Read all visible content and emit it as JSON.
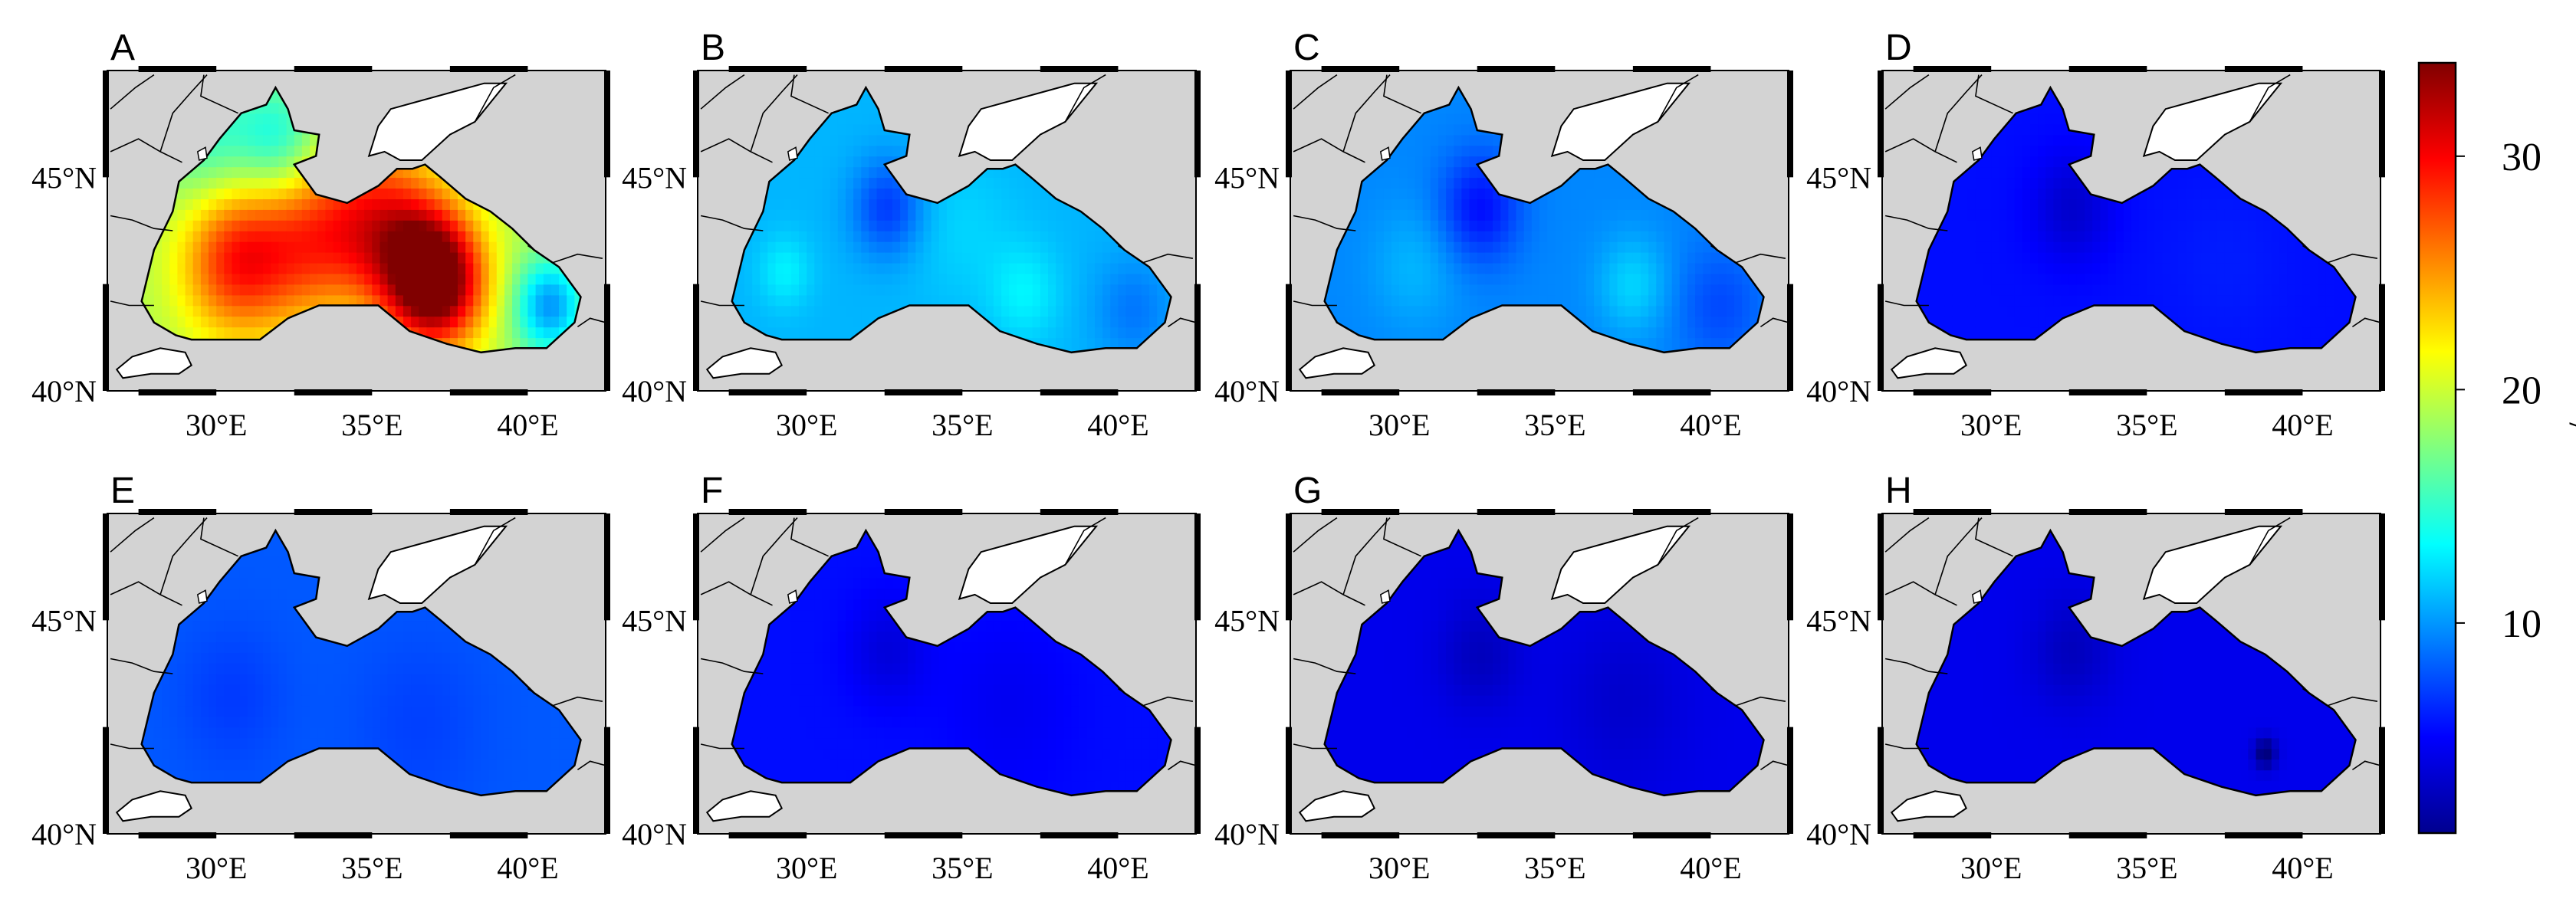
{
  "panels": [
    {
      "label": "A",
      "field": {
        "base": 19,
        "hotspots": [
          [
            37.0,
            42.6,
            18,
            1.1
          ],
          [
            33.0,
            43.3,
            10,
            1.6
          ],
          [
            30.5,
            43.0,
            8,
            1.2
          ],
          [
            35.5,
            43.9,
            8,
            1.3
          ],
          [
            32.0,
            45.8,
            -6,
            1.0
          ],
          [
            29.6,
            46.0,
            -4,
            1.1
          ],
          [
            40.7,
            42.0,
            -9,
            0.8
          ],
          [
            33.5,
            41.6,
            -3,
            1.5
          ]
        ]
      }
    },
    {
      "label": "B",
      "field": {
        "base": 11,
        "hotspots": [
          [
            32.6,
            44.3,
            -4,
            0.8
          ],
          [
            29.3,
            42.8,
            2,
            0.6
          ],
          [
            37.0,
            42.3,
            2,
            0.8
          ],
          [
            35.0,
            43.8,
            1,
            1.2
          ],
          [
            40.5,
            41.9,
            -2,
            0.9
          ]
        ]
      }
    },
    {
      "label": "C",
      "field": {
        "base": 9.5,
        "hotspots": [
          [
            32.6,
            44.3,
            -4,
            0.9
          ],
          [
            37.5,
            42.5,
            2.5,
            0.8
          ],
          [
            30.5,
            42.9,
            1.5,
            1.0
          ],
          [
            40.3,
            42.0,
            -2,
            1.0
          ]
        ]
      }
    },
    {
      "label": "D",
      "field": {
        "base": 5.5,
        "hotspots": [
          [
            32.6,
            44.3,
            -2,
            0.9
          ],
          [
            37.5,
            43.0,
            0.5,
            1.5
          ]
        ]
      }
    },
    {
      "label": "E",
      "field": {
        "base": 8,
        "hotspots": [
          [
            30.5,
            43.2,
            -1,
            1.2
          ],
          [
            36.5,
            42.6,
            -0.8,
            1.5
          ]
        ]
      }
    },
    {
      "label": "F",
      "field": {
        "base": 5.5,
        "hotspots": [
          [
            32.6,
            44.3,
            -1.5,
            0.9
          ],
          [
            36.5,
            43.0,
            -0.8,
            1.5
          ]
        ]
      }
    },
    {
      "label": "G",
      "field": {
        "base": 4.5,
        "hotspots": [
          [
            32.6,
            44.2,
            -1.5,
            0.9
          ],
          [
            37.2,
            43.1,
            -1,
            1.4
          ]
        ]
      }
    },
    {
      "label": "H",
      "field": {
        "base": 4.5,
        "hotspots": [
          [
            32.6,
            44.3,
            -1.5,
            0.9
          ],
          [
            38.8,
            41.9,
            -4,
            0.25
          ]
        ]
      }
    }
  ],
  "axis": {
    "lon_ticks": [
      {
        "value": 30,
        "label": "30°E"
      },
      {
        "value": 35,
        "label": "35°E"
      },
      {
        "value": 40,
        "label": "40°E"
      }
    ],
    "lat_ticks": [
      {
        "value": 40,
        "label": "40°N"
      },
      {
        "value": 45,
        "label": "45°N"
      }
    ],
    "lon_range": [
      26.5,
      42.5
    ],
    "lat_range": [
      40.0,
      47.5
    ]
  },
  "colorbar": {
    "title": "mm/a",
    "range": [
      1,
      34
    ],
    "ticks": [
      {
        "value": 10,
        "label": "10"
      },
      {
        "value": 20,
        "label": "20"
      },
      {
        "value": 30,
        "label": "30"
      }
    ],
    "colormap": "jet"
  },
  "colors": {
    "land": "#d3d3d3",
    "azov_and_lakes": "#ffffff",
    "frame": "#000000"
  }
}
